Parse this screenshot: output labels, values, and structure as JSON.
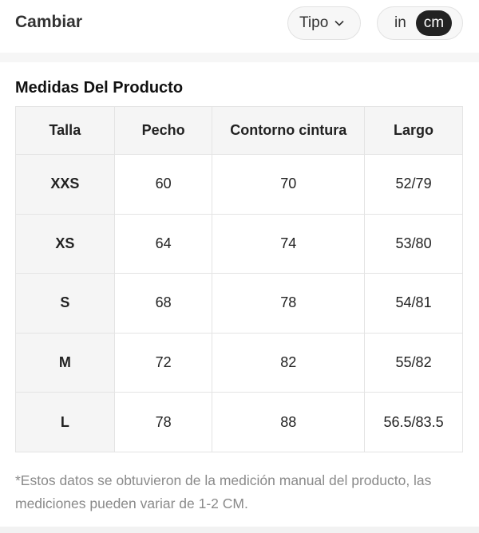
{
  "header": {
    "title": "Cambiar",
    "type_dropdown": "Tipo",
    "unit_in": "in",
    "unit_cm": "cm",
    "selected_unit": "cm"
  },
  "section": {
    "title": "Medidas Del Producto"
  },
  "table": {
    "headers": [
      "Talla",
      "Pecho",
      "Contorno cintura",
      "Largo"
    ],
    "rows": [
      [
        "XXS",
        "60",
        "70",
        "52/79"
      ],
      [
        "XS",
        "64",
        "74",
        "53/80"
      ],
      [
        "S",
        "68",
        "78",
        "54/81"
      ],
      [
        "M",
        "72",
        "82",
        "55/82"
      ],
      [
        "L",
        "78",
        "88",
        "56.5/83.5"
      ]
    ]
  },
  "note": "*Estos datos se obtuvieron de la medición manual del producto, las mediciones pueden variar de 1-2 CM."
}
